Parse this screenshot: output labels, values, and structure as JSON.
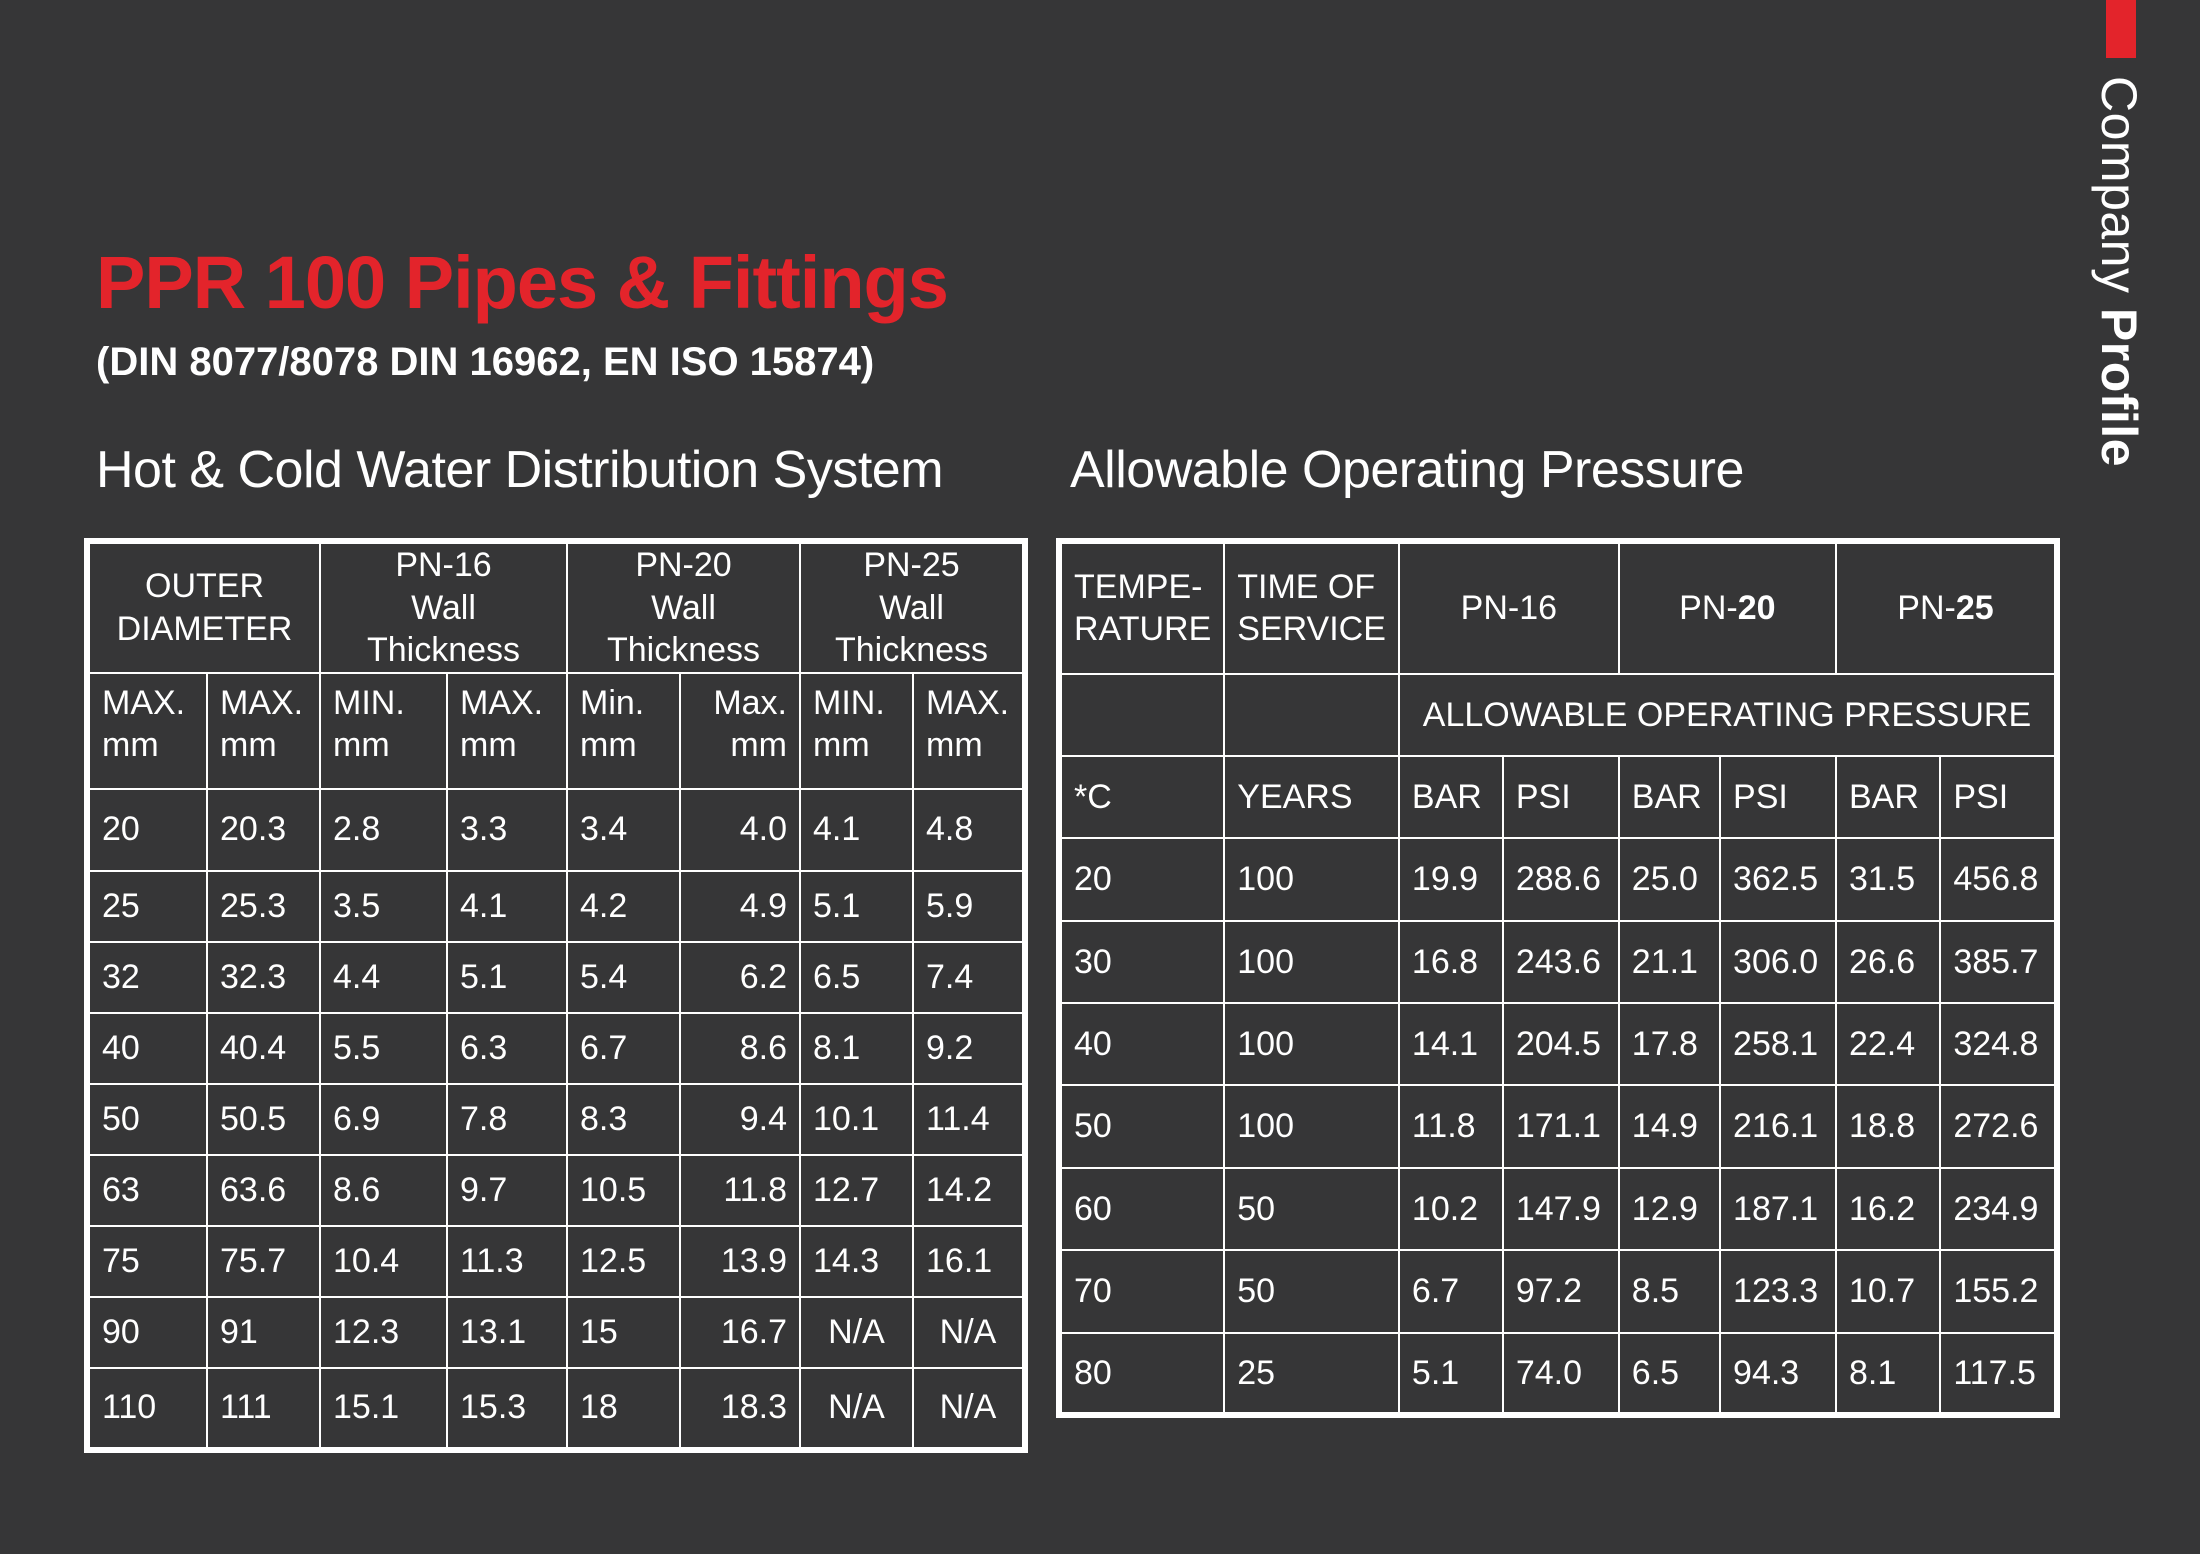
{
  "brand": {
    "side_label_light": "Company ",
    "side_label_bold": "Profile",
    "accent_color": "#e3242b",
    "background_color": "#363637"
  },
  "title": "PPR 100 Pipes & Fittings",
  "subtitle": "(DIN 8077/8078 DIN 16962, EN ISO 15874)",
  "left_section": {
    "heading": "Hot & Cold Water Distribution System",
    "group_headers": [
      [
        "OUTER",
        "DIAMETER"
      ],
      [
        "PN-16",
        "Wall Thickness"
      ],
      [
        "PN-20",
        "Wall Thickness"
      ],
      [
        "PN-25",
        "Wall Thickness"
      ]
    ],
    "sub_headers": [
      [
        "MAX.",
        "mm"
      ],
      [
        "MAX.",
        "mm"
      ],
      [
        "MIN.",
        "mm"
      ],
      [
        "MAX.",
        "mm"
      ],
      [
        "Min.",
        "mm"
      ],
      [
        "Max.",
        "mm"
      ],
      [
        "MIN.",
        "mm"
      ],
      [
        "MAX.",
        "mm"
      ]
    ],
    "rows": [
      [
        "20",
        "20.3",
        "2.8",
        "3.3",
        "3.4",
        "4.0",
        "4.1",
        "4.8"
      ],
      [
        "25",
        "25.3",
        "3.5",
        "4.1",
        "4.2",
        "4.9",
        "5.1",
        "5.9"
      ],
      [
        "32",
        "32.3",
        "4.4",
        "5.1",
        "5.4",
        "6.2",
        "6.5",
        "7.4"
      ],
      [
        "40",
        "40.4",
        "5.5",
        "6.3",
        "6.7",
        "8.6",
        "8.1",
        "9.2"
      ],
      [
        "50",
        "50.5",
        "6.9",
        "7.8",
        "8.3",
        "9.4",
        "10.1",
        "11.4"
      ],
      [
        "63",
        "63.6",
        "8.6",
        "9.7",
        "10.5",
        "11.8",
        "12.7",
        "14.2"
      ],
      [
        "75",
        "75.7",
        "10.4",
        "11.3",
        "12.5",
        "13.9",
        "14.3",
        "16.1"
      ],
      [
        "90",
        "91",
        "12.3",
        "13.1",
        "15",
        "16.7",
        "N/A",
        "N/A"
      ],
      [
        "110",
        "111",
        "15.1",
        "15.3",
        "18",
        "18.3",
        "N/A",
        "N/A"
      ]
    ]
  },
  "right_section": {
    "heading": "Allowable Operating Pressure",
    "header_row": [
      [
        "TEMPE-",
        "RATURE"
      ],
      [
        "TIME OF",
        "SERVICE"
      ],
      [
        "PN-16"
      ],
      [
        "PN-",
        "20"
      ],
      [
        "PN-",
        "25"
      ]
    ],
    "span_label": "ALLOWABLE OPERATING PRESSURE",
    "unit_row": [
      "*C",
      "YEARS",
      "BAR",
      "PSI",
      "BAR",
      "PSI",
      "BAR",
      "PSI"
    ],
    "rows": [
      [
        "20",
        "100",
        "19.9",
        "288.6",
        "25.0",
        "362.5",
        "31.5",
        "456.8"
      ],
      [
        "30",
        "100",
        "16.8",
        "243.6",
        "21.1",
        "306.0",
        "26.6",
        "385.7"
      ],
      [
        "40",
        "100",
        "14.1",
        "204.5",
        "17.8",
        "258.1",
        "22.4",
        "324.8"
      ],
      [
        "50",
        "100",
        "11.8",
        "171.1",
        "14.9",
        "216.1",
        "18.8",
        "272.6"
      ],
      [
        "60",
        "50",
        "10.2",
        "147.9",
        "12.9",
        "187.1",
        "16.2",
        "234.9"
      ],
      [
        "70",
        "50",
        "6.7",
        "97.2",
        "8.5",
        "123.3",
        "10.7",
        "155.2"
      ],
      [
        "80",
        "25",
        "5.1",
        "74.0",
        "6.5",
        "94.3",
        "8.1",
        "117.5"
      ]
    ]
  }
}
